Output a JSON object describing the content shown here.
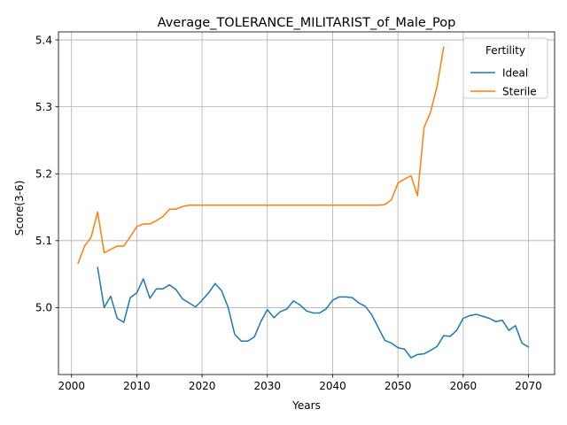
{
  "chart_data": {
    "type": "line",
    "title": "Average_TOLERANCE_MILITARIST_of_Male_Pop",
    "xlabel": "Years",
    "ylabel": "Score(3-6)",
    "xlim": [
      1998,
      2074
    ],
    "ylim": [
      4.9,
      5.412
    ],
    "xticks": [
      2000,
      2010,
      2020,
      2030,
      2040,
      2050,
      2060,
      2070
    ],
    "yticks": [
      5.0,
      5.1,
      5.2,
      5.3,
      5.4
    ],
    "xtick_labels": [
      "2000",
      "2010",
      "2020",
      "2030",
      "2040",
      "2050",
      "2060",
      "2070"
    ],
    "ytick_labels": [
      "5.0",
      "5.1",
      "5.2",
      "5.3",
      "5.4"
    ],
    "grid": true,
    "legend": {
      "title": "Fertility",
      "position": "top-right"
    },
    "series": [
      {
        "name": "Ideal",
        "color": "#1f77b4",
        "x": [
          2004,
          2005,
          2006,
          2007,
          2008,
          2009,
          2010,
          2011,
          2012,
          2013,
          2014,
          2015,
          2016,
          2017,
          2018,
          2019,
          2020,
          2021,
          2022,
          2023,
          2024,
          2025,
          2026,
          2027,
          2028,
          2029,
          2030,
          2031,
          2032,
          2033,
          2034,
          2035,
          2036,
          2037,
          2038,
          2039,
          2040,
          2041,
          2042,
          2043,
          2044,
          2045,
          2046,
          2047,
          2048,
          2049,
          2050,
          2051,
          2052,
          2053,
          2054,
          2055,
          2056,
          2057,
          2058,
          2059,
          2060,
          2061,
          2062,
          2063,
          2064,
          2065,
          2066,
          2067,
          2068,
          2069,
          2070
        ],
        "y": [
          5.06,
          5.0,
          5.017,
          4.984,
          4.978,
          5.015,
          5.022,
          5.043,
          5.014,
          5.028,
          5.028,
          5.034,
          5.027,
          5.013,
          5.007,
          5.001,
          5.011,
          5.022,
          5.036,
          5.025,
          5.0,
          4.96,
          4.95,
          4.95,
          4.956,
          4.979,
          4.997,
          4.985,
          4.994,
          4.998,
          5.01,
          5.004,
          4.995,
          4.992,
          4.992,
          4.998,
          5.011,
          5.016,
          5.016,
          5.015,
          5.007,
          5.002,
          4.989,
          4.97,
          4.951,
          4.947,
          4.94,
          4.938,
          4.925,
          4.93,
          4.931,
          4.936,
          4.942,
          4.958,
          4.957,
          4.966,
          4.984,
          4.988,
          4.99,
          4.987,
          4.984,
          4.979,
          4.981,
          4.966,
          4.973,
          4.947,
          4.941
        ]
      },
      {
        "name": "Sterile",
        "color": "#ff7f0e",
        "x": [
          2001,
          2002,
          2003,
          2004,
          2005,
          2006,
          2007,
          2008,
          2009,
          2010,
          2011,
          2012,
          2013,
          2014,
          2015,
          2016,
          2017,
          2018,
          2019,
          2020,
          2021,
          2022,
          2023,
          2024,
          2025,
          2026,
          2027,
          2028,
          2029,
          2030,
          2031,
          2032,
          2033,
          2034,
          2035,
          2036,
          2037,
          2038,
          2039,
          2040,
          2041,
          2042,
          2043,
          2044,
          2045,
          2046,
          2047,
          2048,
          2049,
          2050,
          2051,
          2052,
          2053,
          2054,
          2055,
          2056,
          2057
        ],
        "y": [
          5.066,
          5.092,
          5.105,
          5.143,
          5.082,
          5.087,
          5.092,
          5.092,
          5.106,
          5.121,
          5.125,
          5.125,
          5.13,
          5.136,
          5.147,
          5.147,
          5.151,
          5.153,
          5.153,
          5.153,
          5.153,
          5.153,
          5.153,
          5.153,
          5.153,
          5.153,
          5.153,
          5.153,
          5.153,
          5.153,
          5.153,
          5.153,
          5.153,
          5.153,
          5.153,
          5.153,
          5.153,
          5.153,
          5.153,
          5.153,
          5.153,
          5.153,
          5.153,
          5.153,
          5.153,
          5.153,
          5.153,
          5.154,
          5.161,
          5.186,
          5.192,
          5.197,
          5.167,
          5.269,
          5.292,
          5.331,
          5.389
        ]
      }
    ]
  }
}
